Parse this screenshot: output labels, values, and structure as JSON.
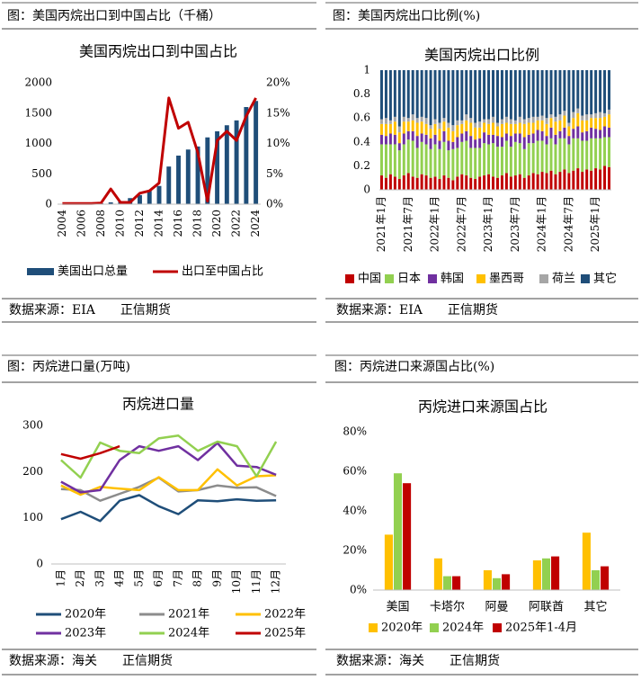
{
  "chart_data": [
    {
      "type": "bar",
      "caption": "图：美国丙烷出口到中国占比（千桶）",
      "title": "美国丙烷出口到中国占比",
      "source": "数据来源：EIA　　正信期货",
      "categories": [
        "2004",
        null,
        "2006",
        null,
        "2008",
        null,
        "2010",
        null,
        "2012",
        null,
        "2014",
        null,
        "2016",
        null,
        "2018",
        null,
        "2020",
        null,
        "2022",
        null,
        "2024"
      ],
      "series": [
        {
          "name": "美国出口总量",
          "color": "#1f4e79",
          "values": [
            5,
            5,
            8,
            10,
            15,
            30,
            50,
            100,
            150,
            220,
            300,
            620,
            800,
            900,
            950,
            1100,
            1200,
            1300,
            1380,
            1600,
            1700
          ]
        },
        {
          "name": "出口至中国占比",
          "type": "line",
          "axis": "y2",
          "color": "#c00000",
          "values": [
            0.1,
            0.1,
            0.1,
            0.1,
            0.2,
            2.5,
            0.3,
            0.3,
            1.8,
            2.2,
            3.5,
            17.5,
            12.5,
            13.5,
            8.5,
            0.5,
            10.5,
            12,
            10.5,
            14.5,
            17.5
          ]
        }
      ],
      "ylim": [
        0,
        2000
      ],
      "yticks": [
        0,
        500,
        1000,
        1500,
        2000
      ],
      "y2lim": [
        0,
        20
      ],
      "y2ticks": [
        {
          "value": 0,
          "label": "0%"
        },
        {
          "value": 5,
          "label": "5%"
        },
        {
          "value": 10,
          "label": "10%"
        },
        {
          "value": 15,
          "label": "15%"
        },
        {
          "value": 20,
          "label": "20%"
        }
      ]
    },
    {
      "type": "stacked_bar",
      "caption": "图：美国丙烷出口比例(%)",
      "title": "美国丙烷出口比例",
      "source": "数据来源：EIA　　正信期货",
      "categories": [
        "2021年1月",
        null,
        null,
        null,
        null,
        null,
        "2021年7月",
        null,
        null,
        null,
        null,
        null,
        "2022年1月",
        null,
        null,
        null,
        null,
        null,
        "2022年7月",
        null,
        null,
        null,
        null,
        null,
        "2023年1月",
        null,
        null,
        null,
        null,
        null,
        "2023年7月",
        null,
        null,
        null,
        null,
        null,
        "2024年1月",
        null,
        null,
        null,
        null,
        null,
        "2024年7月",
        null,
        null,
        null,
        null,
        null,
        "2025年1月",
        null,
        null,
        null
      ],
      "series": [
        {
          "name": "中国",
          "color": "#c00000",
          "values": [
            0.12,
            0.1,
            0.13,
            0.11,
            0.09,
            0.12,
            0.14,
            0.11,
            0.1,
            0.13,
            0.12,
            0.1,
            0.11,
            0.09,
            0.12,
            0.1,
            0.08,
            0.11,
            0.13,
            0.12,
            0.1,
            0.09,
            0.11,
            0.12,
            0.13,
            0.11,
            0.1,
            0.12,
            0.14,
            0.11,
            0.12,
            0.13,
            0.1,
            0.12,
            0.14,
            0.13,
            0.15,
            0.14,
            0.16,
            0.13,
            0.15,
            0.17,
            0.14,
            0.16,
            0.18,
            0.15,
            0.17,
            0.16,
            0.18,
            0.17,
            0.2,
            0.19
          ]
        },
        {
          "name": "日本",
          "color": "#92d050",
          "values": [
            0.26,
            0.28,
            0.25,
            0.27,
            0.24,
            0.26,
            0.28,
            0.3,
            0.25,
            0.27,
            0.26,
            0.24,
            0.27,
            0.25,
            0.28,
            0.23,
            0.26,
            0.24,
            0.27,
            0.29,
            0.25,
            0.26,
            0.24,
            0.27,
            0.25,
            0.28,
            0.26,
            0.24,
            0.27,
            0.25,
            0.28,
            0.26,
            0.24,
            0.27,
            0.25,
            0.28,
            0.26,
            0.24,
            0.27,
            0.25,
            0.28,
            0.26,
            0.24,
            0.27,
            0.25,
            0.26,
            0.24,
            0.27,
            0.25,
            0.26,
            0.24,
            0.25
          ]
        },
        {
          "name": "韩国",
          "color": "#7030a0",
          "values": [
            0.08,
            0.07,
            0.09,
            0.08,
            0.06,
            0.09,
            0.07,
            0.08,
            0.1,
            0.07,
            0.08,
            0.09,
            0.08,
            0.07,
            0.09,
            0.08,
            0.06,
            0.09,
            0.07,
            0.08,
            0.1,
            0.07,
            0.08,
            0.09,
            0.08,
            0.07,
            0.09,
            0.08,
            0.06,
            0.09,
            0.07,
            0.08,
            0.1,
            0.07,
            0.08,
            0.09,
            0.08,
            0.07,
            0.09,
            0.08,
            0.06,
            0.09,
            0.07,
            0.08,
            0.1,
            0.07,
            0.08,
            0.09,
            0.08,
            0.07,
            0.09,
            0.08
          ]
        },
        {
          "name": "墨西哥",
          "color": "#ffc000",
          "values": [
            0.09,
            0.1,
            0.08,
            0.11,
            0.09,
            0.1,
            0.08,
            0.09,
            0.11,
            0.1,
            0.09,
            0.08,
            0.09,
            0.1,
            0.08,
            0.11,
            0.09,
            0.1,
            0.08,
            0.09,
            0.11,
            0.1,
            0.09,
            0.08,
            0.09,
            0.1,
            0.08,
            0.11,
            0.09,
            0.1,
            0.08,
            0.09,
            0.11,
            0.1,
            0.09,
            0.08,
            0.09,
            0.1,
            0.08,
            0.11,
            0.09,
            0.1,
            0.08,
            0.09,
            0.11,
            0.1,
            0.09,
            0.08,
            0.09,
            0.1,
            0.08,
            0.11
          ]
        },
        {
          "name": "荷兰",
          "color": "#a6a6a6",
          "values": [
            0.04,
            0.05,
            0.03,
            0.04,
            0.05,
            0.04,
            0.03,
            0.05,
            0.04,
            0.04,
            0.05,
            0.03,
            0.04,
            0.05,
            0.03,
            0.04,
            0.05,
            0.04,
            0.03,
            0.05,
            0.04,
            0.04,
            0.05,
            0.03,
            0.04,
            0.05,
            0.03,
            0.04,
            0.05,
            0.04,
            0.03,
            0.05,
            0.04,
            0.04,
            0.05,
            0.03,
            0.04,
            0.05,
            0.03,
            0.04,
            0.05,
            0.04,
            0.03,
            0.05,
            0.04,
            0.04,
            0.05,
            0.03,
            0.04,
            0.05,
            0.03,
            0.04
          ]
        },
        {
          "name": "其它",
          "color": "#1f4e79",
          "values": [
            0.41,
            0.4,
            0.42,
            0.39,
            0.47,
            0.39,
            0.4,
            0.37,
            0.4,
            0.39,
            0.4,
            0.46,
            0.41,
            0.44,
            0.4,
            0.44,
            0.46,
            0.42,
            0.42,
            0.37,
            0.4,
            0.44,
            0.43,
            0.41,
            0.41,
            0.39,
            0.44,
            0.41,
            0.39,
            0.41,
            0.42,
            0.39,
            0.41,
            0.4,
            0.39,
            0.39,
            0.38,
            0.4,
            0.37,
            0.39,
            0.37,
            0.34,
            0.44,
            0.35,
            0.32,
            0.38,
            0.37,
            0.37,
            0.36,
            0.35,
            0.36,
            0.33
          ]
        }
      ],
      "ylim": [
        0,
        1
      ],
      "yticks": [
        0,
        0.2,
        0.4,
        0.6,
        0.8,
        1
      ]
    },
    {
      "type": "line",
      "caption": "图：丙烷进口量(万吨)",
      "title": "丙烷进口量",
      "source": "数据来源：海关　　正信期货",
      "categories": [
        "1月",
        "2月",
        "3月",
        "4月",
        "5月",
        "6月",
        "7月",
        "8月",
        "9月",
        "10月",
        "11月",
        "12月"
      ],
      "series": [
        {
          "name": "2020年",
          "color": "#1f4e79",
          "values": [
            97,
            113,
            93,
            137,
            149,
            125,
            108,
            138,
            136,
            140,
            137,
            138
          ]
        },
        {
          "name": "2021年",
          "color": "#8c8c8c",
          "values": [
            162,
            160,
            137,
            152,
            167,
            187,
            157,
            160,
            170,
            165,
            166,
            147
          ]
        },
        {
          "name": "2022年",
          "color": "#ffc000",
          "values": [
            170,
            150,
            167,
            163,
            160,
            188,
            160,
            160,
            205,
            170,
            190,
            192
          ]
        },
        {
          "name": "2023年",
          "color": "#7030a0",
          "values": [
            178,
            155,
            160,
            225,
            255,
            245,
            255,
            225,
            262,
            213,
            210,
            193
          ]
        },
        {
          "name": "2024年",
          "color": "#92d050",
          "values": [
            225,
            187,
            263,
            245,
            240,
            272,
            278,
            245,
            265,
            255,
            190,
            265
          ]
        },
        {
          "name": "2025年",
          "color": "#c00000",
          "values": [
            238,
            228,
            240,
            255,
            null,
            null,
            null,
            null,
            null,
            null,
            null,
            null
          ]
        }
      ],
      "ylim": [
        0,
        300
      ],
      "yticks": [
        0,
        100,
        200,
        300
      ]
    },
    {
      "type": "bar",
      "caption": "图：丙烷进口来源国占比(%)",
      "title": "丙烷进口来源国占比",
      "source": "数据来源：海关　　正信期货",
      "categories": [
        "美国",
        "卡塔尔",
        "阿曼",
        "阿联酋",
        "其它"
      ],
      "series": [
        {
          "name": "2020年",
          "color": "#ffc000",
          "values": [
            28,
            16,
            10,
            15,
            29
          ]
        },
        {
          "name": "2024年",
          "color": "#92d050",
          "values": [
            59,
            7,
            6,
            16,
            10
          ]
        },
        {
          "name": "2025年1-4月",
          "color": "#c00000",
          "values": [
            54,
            7,
            8,
            17,
            12
          ]
        }
      ],
      "ylim": [
        0,
        80
      ],
      "yticks": [
        {
          "value": 0,
          "label": "0%"
        },
        {
          "value": 20,
          "label": "20%"
        },
        {
          "value": 40,
          "label": "40%"
        },
        {
          "value": 60,
          "label": "60%"
        },
        {
          "value": 80,
          "label": "80%"
        }
      ]
    }
  ]
}
